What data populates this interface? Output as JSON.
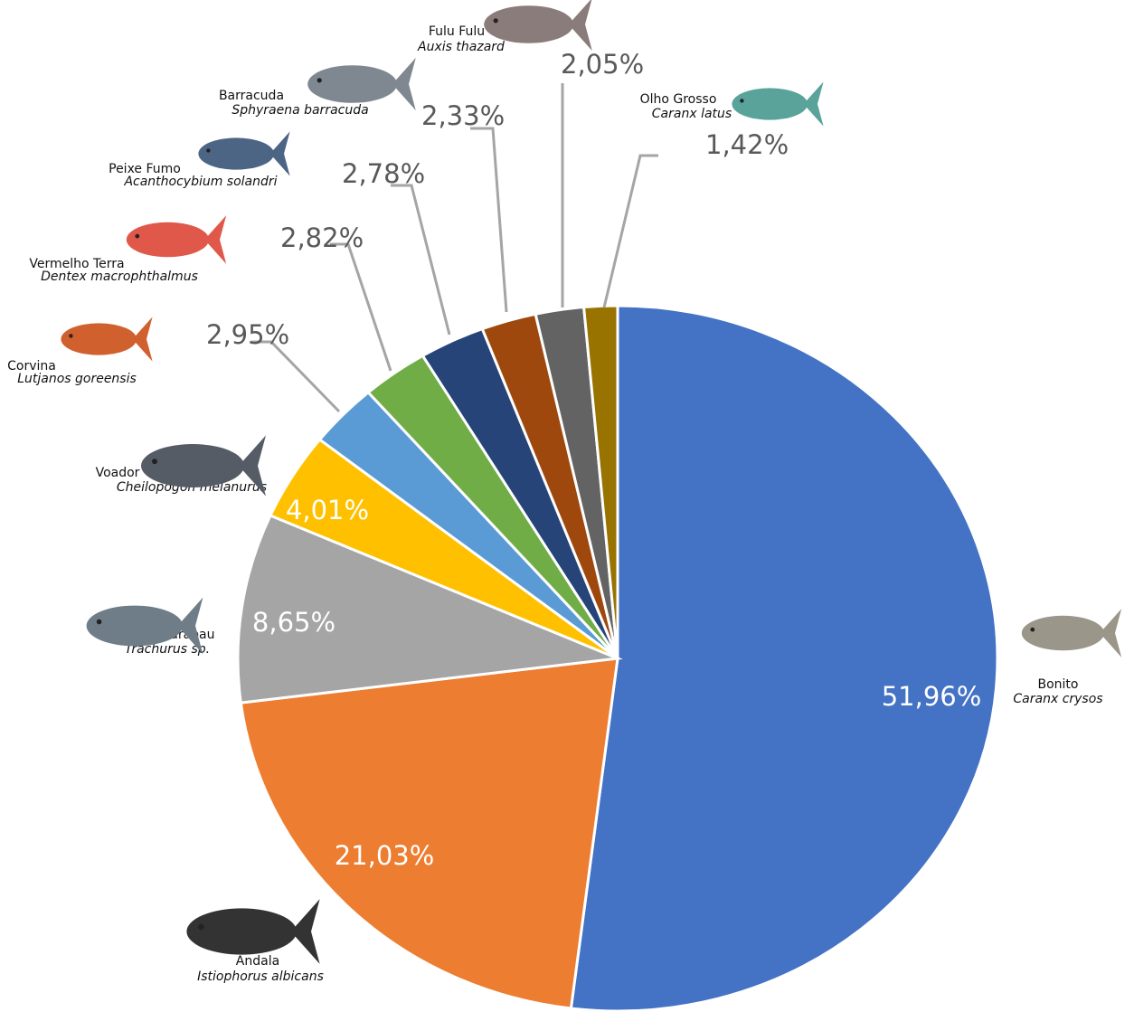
{
  "chart_data": {
    "type": "pie",
    "categories": [
      "Bonito",
      "Andala",
      "Carapau",
      "Voador",
      "Corvina",
      "Vermelho Terra",
      "Peixe Fumo",
      "Barracuda",
      "Fulu Fulu",
      "Olho Grosso"
    ],
    "scientific_names": [
      "Caranx crysos",
      "Istiophorus albicans",
      "Trachurus sp.",
      "Cheilopogon melanurus",
      "Lutjanos goreensis",
      "Dentex macrophthalmus",
      "Acanthocybium solandri",
      "Sphyraena barracuda",
      "Auxis thazard",
      "Caranx latus"
    ],
    "values": [
      51.96,
      21.03,
      8.65,
      4.01,
      2.95,
      2.82,
      2.78,
      2.33,
      2.05,
      1.42
    ],
    "value_labels": [
      "51,96%",
      "21,03%",
      "8,65%",
      "4,01%",
      "2,95%",
      "2,82%",
      "2,78%",
      "2,33%",
      "2,05%",
      "1,42%"
    ],
    "colors": [
      "#4472c4",
      "#ed7d31",
      "#a5a5a5",
      "#ffc000",
      "#5b9bd5",
      "#70ad47",
      "#264478",
      "#9e480e",
      "#636363",
      "#997300"
    ]
  }
}
